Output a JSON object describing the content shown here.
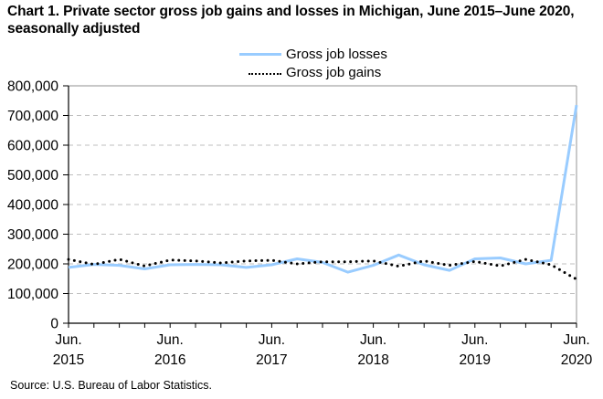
{
  "chart_data": {
    "type": "line",
    "title": "Chart 1. Private sector gross job gains and losses in Michigan, June 2015–June 2020, seasonally  adjusted",
    "xlabel": "",
    "ylabel": "",
    "ylim": [
      0,
      800000
    ],
    "yticks": [
      0,
      100000,
      200000,
      300000,
      400000,
      500000,
      600000,
      700000,
      800000
    ],
    "ytick_labels": [
      "0",
      "100,000",
      "200,000",
      "300,000",
      "400,000",
      "500,000",
      "600,000",
      "700,000",
      "800,000"
    ],
    "x": [
      "Jun 2015",
      "Sep 2015",
      "Dec 2015",
      "Mar 2016",
      "Jun 2016",
      "Sep 2016",
      "Dec 2016",
      "Mar 2017",
      "Jun 2017",
      "Sep 2017",
      "Dec 2017",
      "Mar 2018",
      "Jun 2018",
      "Sep 2018",
      "Dec 2018",
      "Mar 2019",
      "Jun 2019",
      "Sep 2019",
      "Dec 2019",
      "Mar 2020",
      "Jun 2020"
    ],
    "xtick_labels": [
      {
        "index": 0,
        "line1": "Jun.",
        "line2": "2015"
      },
      {
        "index": 4,
        "line1": "Jun.",
        "line2": "2016"
      },
      {
        "index": 8,
        "line1": "Jun.",
        "line2": "2017"
      },
      {
        "index": 12,
        "line1": "Jun.",
        "line2": "2018"
      },
      {
        "index": 16,
        "line1": "Jun.",
        "line2": "2019"
      },
      {
        "index": 20,
        "line1": "Jun.",
        "line2": "2020"
      }
    ],
    "grid": true,
    "legend_position": "top-center",
    "series": [
      {
        "name": "Gross job losses",
        "style": "solid",
        "color": "#99ccff",
        "values": [
          188000,
          198000,
          195000,
          183000,
          197000,
          198000,
          197000,
          188000,
          197000,
          217000,
          205000,
          172000,
          195000,
          230000,
          197000,
          178000,
          217000,
          220000,
          200000,
          212000,
          735000
        ]
      },
      {
        "name": "Gross job gains",
        "style": "dotted",
        "color": "#000000",
        "values": [
          215000,
          198000,
          215000,
          193000,
          213000,
          210000,
          203000,
          210000,
          212000,
          200000,
          207000,
          207000,
          210000,
          192000,
          210000,
          195000,
          208000,
          193000,
          215000,
          197000,
          148000
        ]
      }
    ]
  },
  "source": "Source: U.S. Bureau  of Labor  Statistics."
}
